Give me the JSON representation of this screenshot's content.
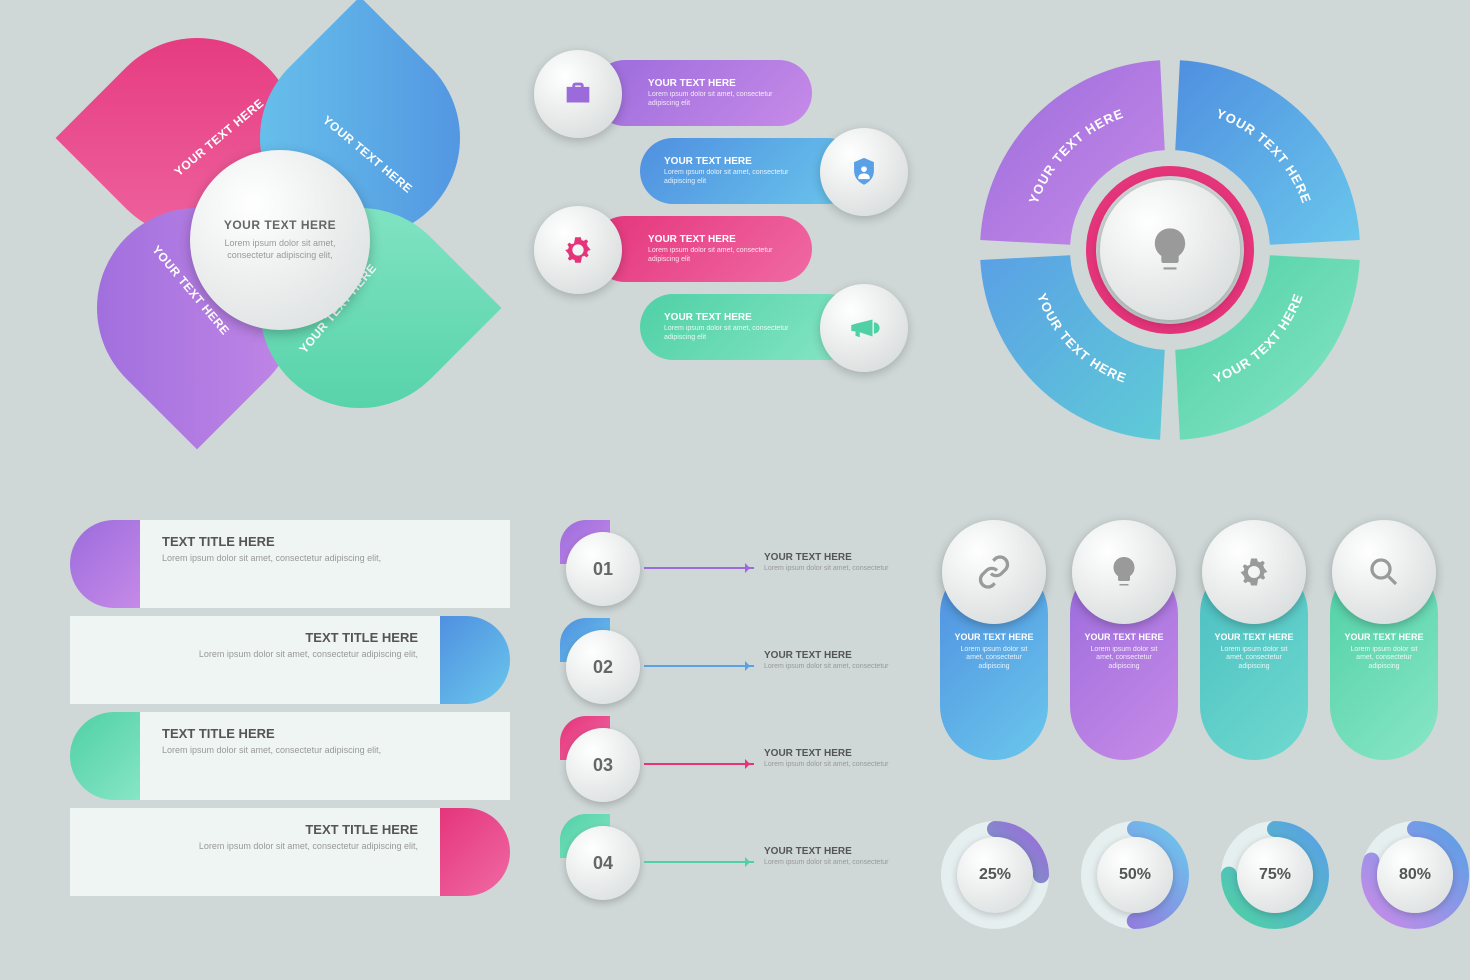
{
  "palette": {
    "bg": "#cfd7d7",
    "purple": [
      "#9b6bdc",
      "#c78be8"
    ],
    "blue": [
      "#4f8fe0",
      "#6ac7ec"
    ],
    "pink": [
      "#e4347a",
      "#f06aa4"
    ],
    "green": [
      "#4fd0a5",
      "#88e6c6"
    ]
  },
  "petals": {
    "label": "YOUR TEXT HERE",
    "center_title": "YOUR TEXT HERE",
    "center_desc": "Lorem ipsum dolor sit amet, consectetur adipiscing elit,",
    "items": [
      {
        "color": "pink"
      },
      {
        "color": "blue"
      },
      {
        "color": "purple"
      },
      {
        "color": "green"
      }
    ]
  },
  "pills": {
    "items": [
      {
        "color": "purple",
        "side": "left",
        "icon": "briefcase",
        "title": "YOUR TEXT HERE",
        "desc": "Lorem ipsum dolor sit amet, consectetur adipiscing elit"
      },
      {
        "color": "blue",
        "side": "right",
        "icon": "shield",
        "title": "YOUR TEXT HERE",
        "desc": "Lorem ipsum dolor sit amet, consectetur adipiscing elit"
      },
      {
        "color": "pink",
        "side": "left",
        "icon": "gear",
        "title": "YOUR TEXT HERE",
        "desc": "Lorem ipsum dolor sit amet, consectetur adipiscing elit"
      },
      {
        "color": "green",
        "side": "right",
        "icon": "megaphone",
        "title": "YOUR TEXT HERE",
        "desc": "Lorem ipsum dolor sit amet, consectetur adipiscing elit"
      }
    ]
  },
  "ring": {
    "center_icon": "bulb",
    "label": "YOUR TEXT HERE",
    "border_color": "#e4347a",
    "segments": [
      {
        "color": "purple"
      },
      {
        "color": "blue"
      },
      {
        "color": "blue_teal"
      },
      {
        "color": "green"
      }
    ]
  },
  "ribbons": {
    "title": "TEXT TITLE HERE",
    "desc": "Lorem ipsum dolor sit amet, consectetur adipiscing elit,",
    "body_bg": "#eef5f2",
    "items": [
      {
        "color": "purple",
        "tab": "left"
      },
      {
        "color": "blue",
        "tab": "right"
      },
      {
        "color": "green",
        "tab": "left"
      },
      {
        "color": "pink",
        "tab": "right"
      }
    ]
  },
  "steps": {
    "items": [
      {
        "num": "01",
        "color": "purple",
        "title": "YOUR TEXT HERE",
        "desc": "Lorem ipsum dolor sit amet, consectetur"
      },
      {
        "num": "02",
        "color": "blue",
        "title": "YOUR TEXT HERE",
        "desc": "Lorem ipsum dolor sit amet, consectetur"
      },
      {
        "num": "03",
        "color": "pink",
        "title": "YOUR TEXT HERE",
        "desc": "Lorem ipsum dolor sit amet, consectetur"
      },
      {
        "num": "04",
        "color": "green",
        "title": "YOUR TEXT HERE",
        "desc": "Lorem ipsum dolor sit amet, consectetur"
      }
    ]
  },
  "tags": {
    "items": [
      {
        "color": "blue",
        "icon": "link",
        "title": "YOUR TEXT HERE",
        "desc": "Lorem ipsum dolor sit amet, consectetur adipiscing"
      },
      {
        "color": "purple",
        "icon": "bulb",
        "title": "YOUR TEXT HERE",
        "desc": "Lorem ipsum dolor sit amet, consectetur adipiscing"
      },
      {
        "color": "teal",
        "icon": "gear",
        "title": "YOUR TEXT HERE",
        "desc": "Lorem ipsum dolor sit amet, consectetur adipiscing"
      },
      {
        "color": "green",
        "icon": "search",
        "title": "YOUR TEXT HERE",
        "desc": "Lorem ipsum dolor sit amet, consectetur adipiscing"
      }
    ]
  },
  "donuts": {
    "track_color": "#e6efef",
    "items": [
      {
        "pct": 25,
        "label": "25%",
        "grad": [
          "#4fd0a5",
          "#9b6bdc"
        ]
      },
      {
        "pct": 50,
        "label": "50%",
        "grad": [
          "#9b6bdc",
          "#6ac7ec"
        ]
      },
      {
        "pct": 75,
        "label": "75%",
        "grad": [
          "#4fd0a5",
          "#5aa0e6"
        ]
      },
      {
        "pct": 80,
        "label": "80%",
        "grad": [
          "#c78be8",
          "#5aa0e6"
        ]
      }
    ]
  },
  "gradients": {
    "purple": "linear-gradient(135deg,#9b6bdc,#c78be8)",
    "blue": "linear-gradient(135deg,#4f8fe0,#6ac7ec)",
    "pink": "linear-gradient(135deg,#e4347a,#f06aa4)",
    "green": "linear-gradient(135deg,#4fd0a5,#88e6c6)",
    "teal": "linear-gradient(135deg,#4bbfc1,#6fd9cf)",
    "blue_teal": "linear-gradient(135deg,#5aa0e6,#5fcbd6)"
  },
  "icon_fills": {
    "purple": "#9b6bdc",
    "blue": "#5aa0e6",
    "pink": "#e4347a",
    "green": "#4fd0a5"
  }
}
